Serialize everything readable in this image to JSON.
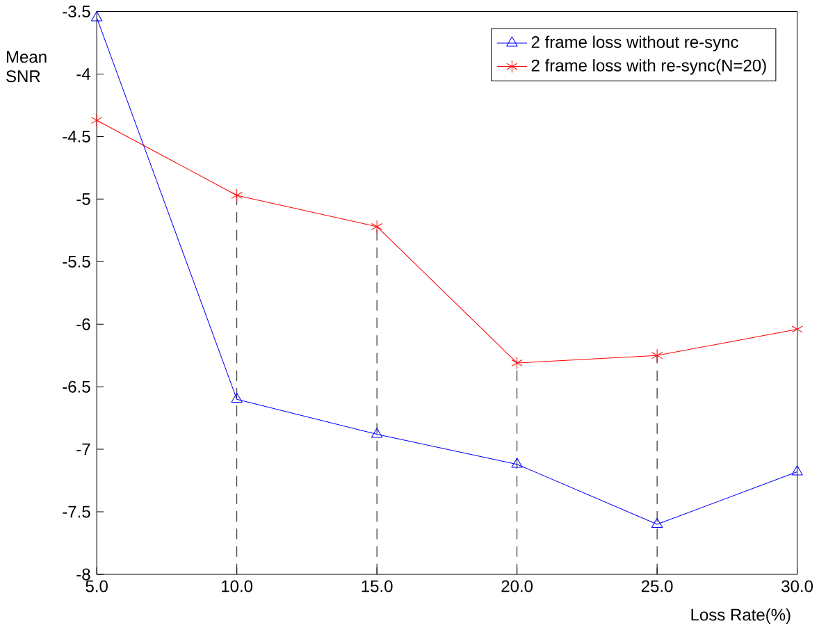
{
  "chart_data": {
    "type": "line",
    "xlabel": "Loss Rate(%)",
    "ylabel": "Mean SNR",
    "x": [
      5,
      10,
      15,
      20,
      25,
      30
    ],
    "series": [
      {
        "name": "2 frame loss without re-sync",
        "color": "#0000ff",
        "marker": "triangle",
        "values": [
          -3.55,
          -6.6,
          -6.88,
          -7.12,
          -7.6,
          -7.18
        ]
      },
      {
        "name": "2 frame loss with re-sync(N=20)",
        "color": "#ff0000",
        "marker": "cross",
        "values": [
          -4.37,
          -4.97,
          -5.22,
          -6.31,
          -6.25,
          -6.04
        ]
      }
    ],
    "xlim": [
      5,
      30
    ],
    "ylim": [
      -8,
      -3.5
    ],
    "xticks": [
      {
        "value": 5,
        "label": "5.0"
      },
      {
        "value": 10,
        "label": "10.0"
      },
      {
        "value": 15,
        "label": "15.0"
      },
      {
        "value": 20,
        "label": "20.0"
      },
      {
        "value": 25,
        "label": "25.0"
      },
      {
        "value": 30,
        "label": "30.0"
      }
    ],
    "yticks": [
      -8,
      -7.5,
      -7,
      -6.5,
      -6,
      -5.5,
      -5,
      -4.5,
      -4,
      -3.5
    ],
    "ref_lines": [
      {
        "axis": "x",
        "value": 10,
        "color": "#000000",
        "line_style": "dashed"
      },
      {
        "axis": "x",
        "value": 15,
        "color": "#000000",
        "line_style": "dashed"
      },
      {
        "axis": "x",
        "value": 20,
        "color": "#000000",
        "line_style": "dashed"
      },
      {
        "axis": "x",
        "value": 25,
        "color": "#000000",
        "line_style": "dashed"
      }
    ],
    "legend": "top right",
    "grid": false,
    "line_style": "solid"
  }
}
